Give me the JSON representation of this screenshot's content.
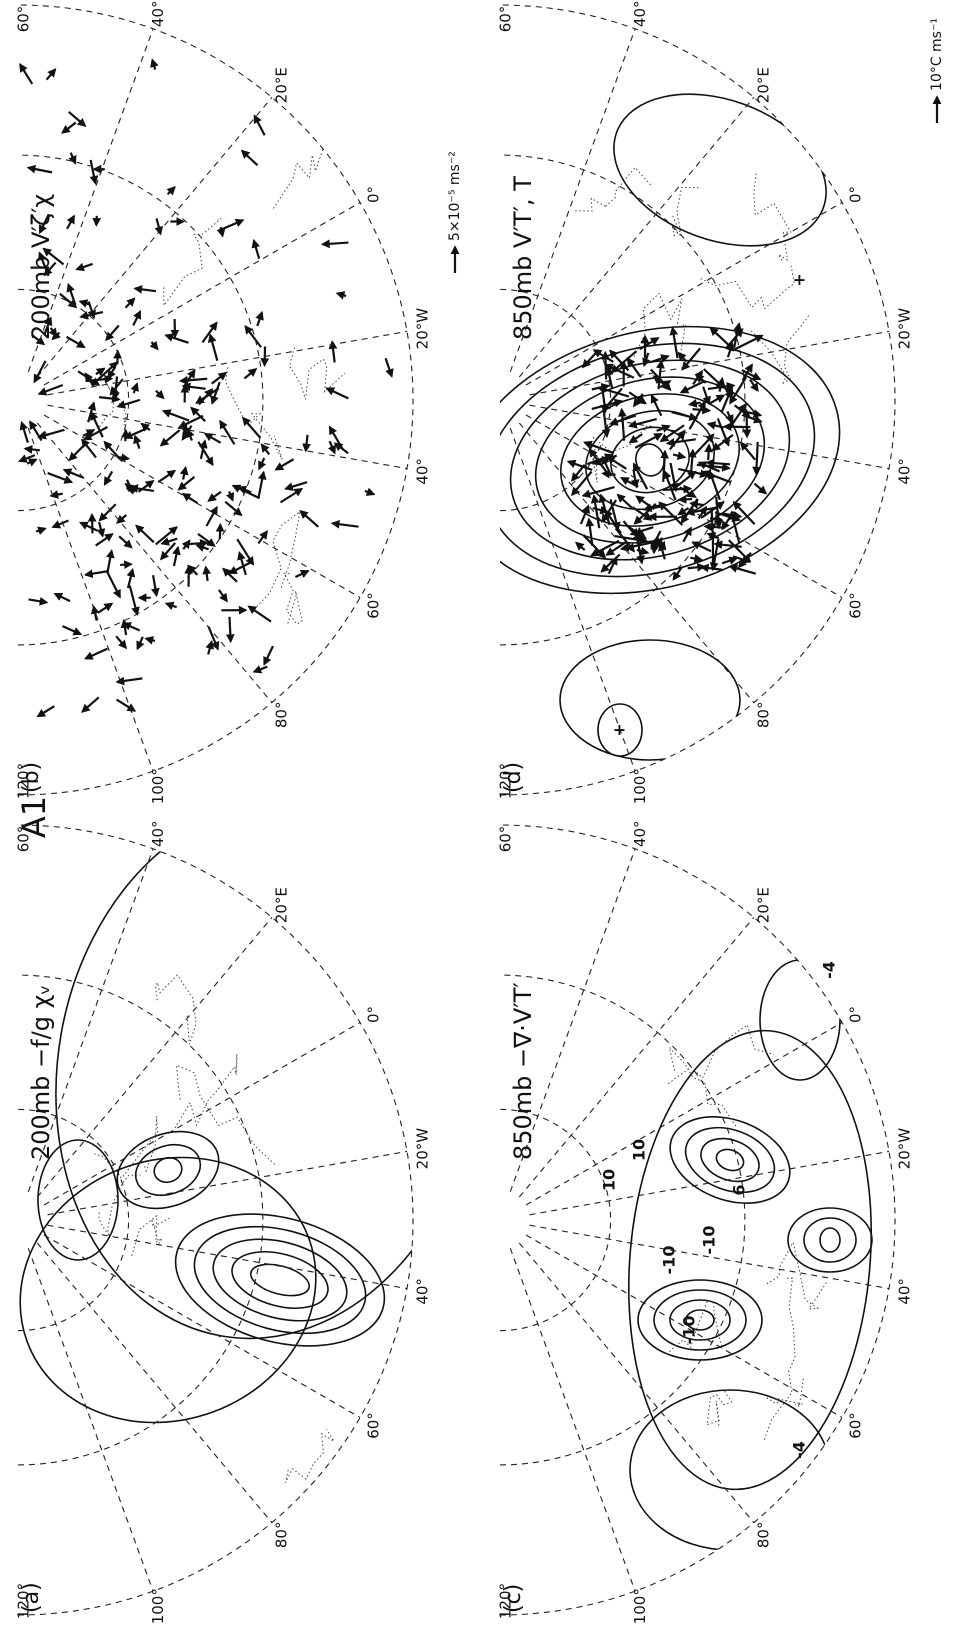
{
  "figure": {
    "title": "A1"
  },
  "longitude_labels": [
    "120°",
    "100°",
    "80°",
    "60°",
    "40°",
    "20°W",
    "0°",
    "20°E",
    "40°",
    "60°"
  ],
  "panels": [
    {
      "label": "(a)",
      "title": "200mb −f/g χᵥ"
    },
    {
      "label": "(b)",
      "title": "200mb V′ζ′χ",
      "scale": "5×10⁻⁵ ms⁻²"
    },
    {
      "label": "(c)",
      "title": "850mb −∇·V′T′",
      "annotations": [
        "-10",
        "-10",
        "-10",
        "10",
        "10",
        "-4",
        "-4",
        "6"
      ]
    },
    {
      "label": "(d)",
      "title": "850mb V′T′, T",
      "scale": "10°C ms⁻¹",
      "annotations": [
        "+",
        "+"
      ]
    }
  ]
}
